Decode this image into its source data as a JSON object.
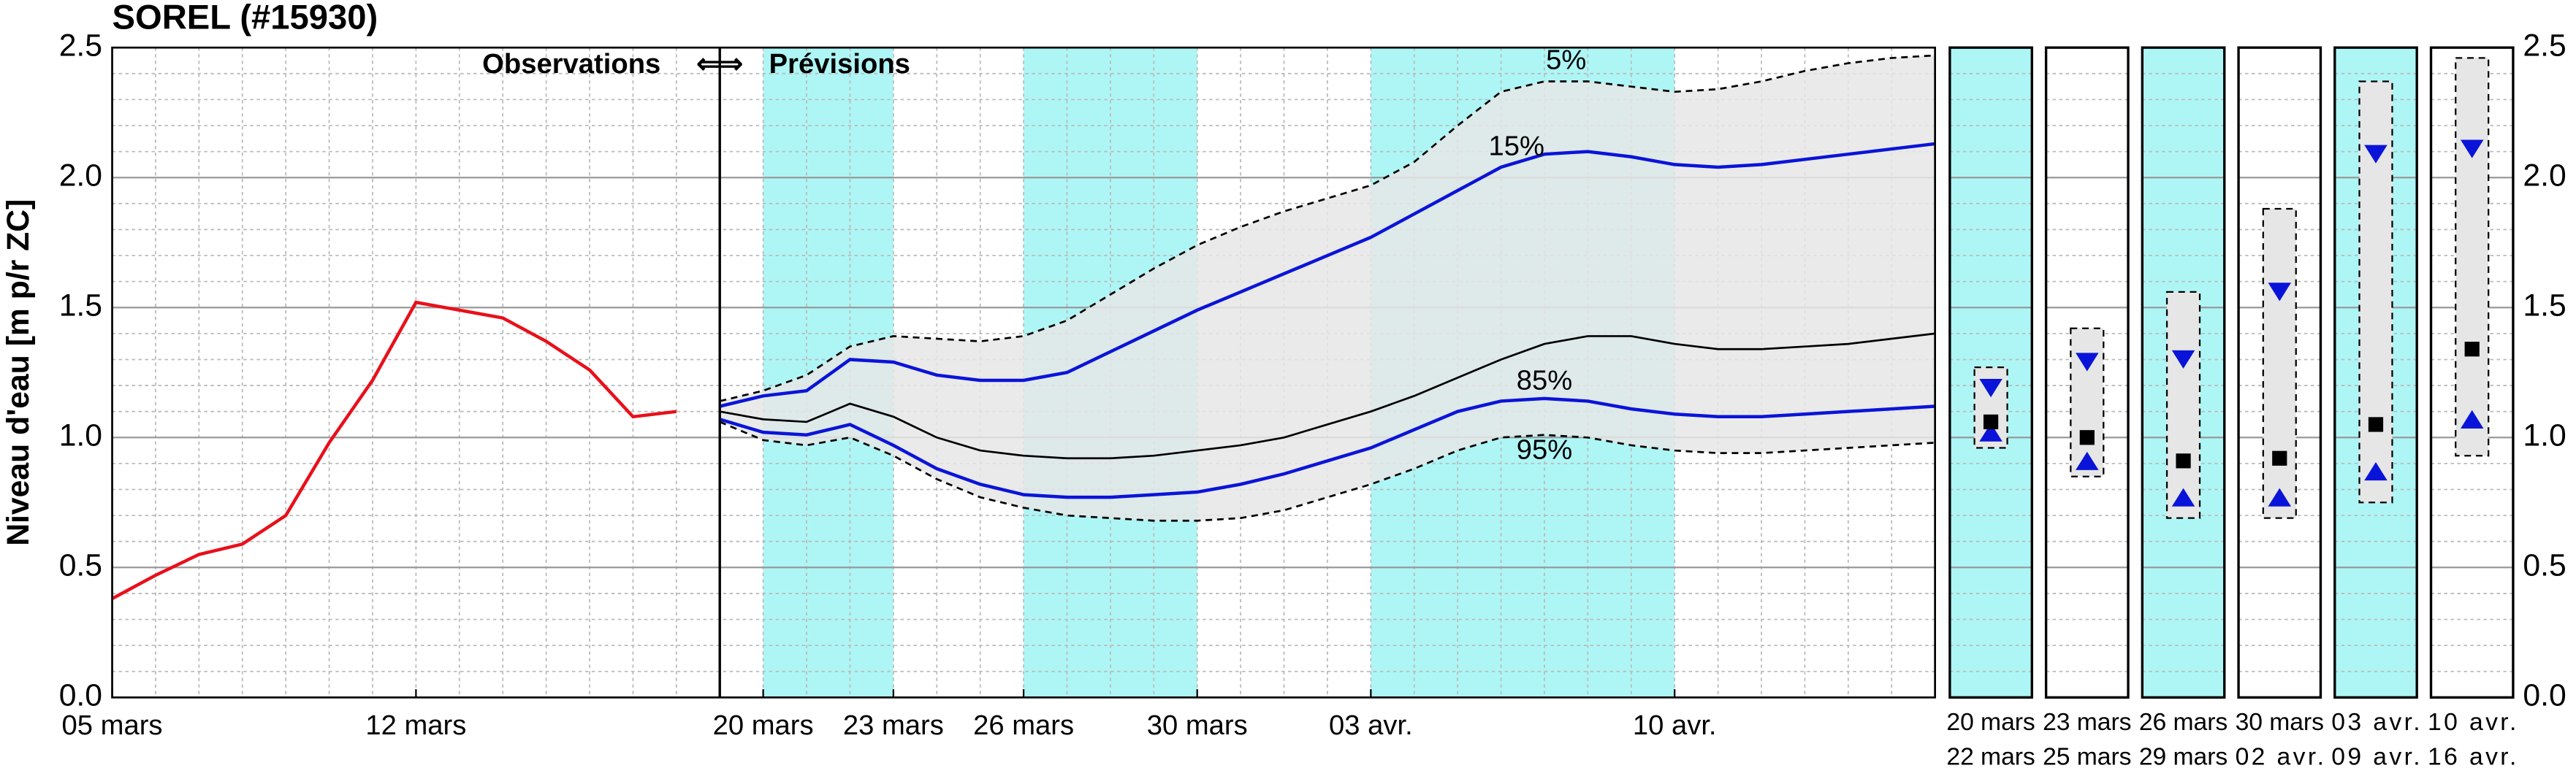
{
  "chart_data": {
    "type": "line",
    "title": "SOREL (#15930)",
    "ylabel": "Niveau d'eau [m p/r ZC]",
    "annotations": [
      "Observations",
      "⇐⇒",
      "Prévisions"
    ],
    "x": [
      0,
      1,
      2,
      3,
      4,
      5,
      6,
      7,
      8,
      9,
      10,
      11,
      12,
      13,
      14,
      15,
      16,
      17,
      18,
      19,
      20,
      21,
      22,
      23,
      24,
      25,
      26,
      27,
      28,
      29,
      30,
      31,
      32,
      33,
      34,
      35,
      36,
      37,
      38,
      39,
      40,
      41,
      42
    ],
    "xlim": [
      0,
      42
    ],
    "xticks": [
      {
        "value": 0,
        "label": "05 mars"
      },
      {
        "value": 7,
        "label": "12 mars"
      },
      {
        "value": 15,
        "label": "20 mars"
      },
      {
        "value": 18,
        "label": "23 mars"
      },
      {
        "value": 21,
        "label": "26 mars"
      },
      {
        "value": 25,
        "label": "30 mars"
      },
      {
        "value": 29,
        "label": "03 avr."
      },
      {
        "value": 36,
        "label": "10 avr."
      }
    ],
    "ylim": [
      0,
      2.5
    ],
    "yticks": [
      {
        "value": 0,
        "label": "0.0"
      },
      0.5,
      {
        "value": 1,
        "label": "1.0"
      },
      1.5,
      {
        "value": 2,
        "label": "2.0"
      },
      2.5
    ],
    "y2lim": [
      0,
      2.5
    ],
    "y2ticks": [
      {
        "value": 0,
        "label": "0.0"
      },
      0.5,
      {
        "value": 1,
        "label": "1.0"
      },
      1.5,
      {
        "value": 2,
        "label": "2.0"
      },
      2.5
    ],
    "grid": true,
    "forecast_start": 14,
    "highlights": [
      [
        15,
        18
      ],
      [
        21,
        25
      ],
      [
        29,
        36
      ]
    ],
    "highlight_color": "#aef6f6",
    "band_color": "#e6e6e6",
    "series": [
      {
        "color": "#e8101a",
        "values": [
          0.38,
          0.47,
          0.55,
          0.59,
          0.7,
          0.98,
          1.22,
          1.52,
          1.49,
          1.46,
          1.37,
          1.26,
          1.08,
          1.1,
          null,
          null,
          null,
          null,
          null,
          null,
          null,
          null,
          null,
          null,
          null,
          null,
          null,
          null,
          null,
          null,
          null,
          null,
          null,
          null,
          null,
          null,
          null,
          null,
          null,
          null,
          null,
          null,
          null
        ]
      },
      {
        "name": "5%",
        "color": "#000000",
        "style": "dashed",
        "values": [
          null,
          null,
          null,
          null,
          null,
          null,
          null,
          null,
          null,
          null,
          null,
          null,
          null,
          null,
          1.14,
          1.18,
          1.24,
          1.35,
          1.39,
          1.38,
          1.37,
          1.39,
          1.45,
          1.55,
          1.65,
          1.74,
          1.81,
          1.87,
          1.92,
          1.97,
          2.06,
          2.2,
          2.33,
          2.37,
          2.37,
          2.35,
          2.33,
          2.34,
          2.37,
          2.41,
          2.44,
          2.46,
          2.47
        ]
      },
      {
        "name": "15%",
        "color": "#0a14d8",
        "values": [
          null,
          null,
          null,
          null,
          null,
          null,
          null,
          null,
          null,
          null,
          null,
          null,
          null,
          null,
          1.12,
          1.16,
          1.18,
          1.3,
          1.29,
          1.24,
          1.22,
          1.22,
          1.25,
          1.33,
          1.41,
          1.49,
          1.56,
          1.63,
          1.7,
          1.77,
          1.86,
          1.95,
          2.04,
          2.09,
          2.1,
          2.08,
          2.05,
          2.04,
          2.05,
          2.07,
          2.09,
          2.11,
          2.13
        ]
      },
      {
        "color": "#000000",
        "values": [
          null,
          null,
          null,
          null,
          null,
          null,
          null,
          null,
          null,
          null,
          null,
          null,
          null,
          null,
          1.1,
          1.07,
          1.06,
          1.13,
          1.08,
          1.0,
          0.95,
          0.93,
          0.92,
          0.92,
          0.93,
          0.95,
          0.97,
          1.0,
          1.05,
          1.1,
          1.16,
          1.23,
          1.3,
          1.36,
          1.39,
          1.39,
          1.36,
          1.34,
          1.34,
          1.35,
          1.36,
          1.38,
          1.4
        ]
      },
      {
        "name": "85%",
        "color": "#0a14d8",
        "values": [
          null,
          null,
          null,
          null,
          null,
          null,
          null,
          null,
          null,
          null,
          null,
          null,
          null,
          null,
          1.07,
          1.02,
          1.01,
          1.05,
          0.97,
          0.88,
          0.82,
          0.78,
          0.77,
          0.77,
          0.78,
          0.79,
          0.82,
          0.86,
          0.91,
          0.96,
          1.03,
          1.1,
          1.14,
          1.15,
          1.14,
          1.11,
          1.09,
          1.08,
          1.08,
          1.09,
          1.1,
          1.11,
          1.12
        ]
      },
      {
        "name": "95%",
        "color": "#000000",
        "style": "dashed",
        "values": [
          null,
          null,
          null,
          null,
          null,
          null,
          null,
          null,
          null,
          null,
          null,
          null,
          null,
          null,
          1.06,
          0.99,
          0.97,
          1.0,
          0.93,
          0.84,
          0.77,
          0.73,
          0.7,
          0.69,
          0.68,
          0.68,
          0.69,
          0.72,
          0.77,
          0.82,
          0.88,
          0.95,
          1.0,
          1.01,
          1.0,
          0.97,
          0.95,
          0.94,
          0.94,
          0.95,
          0.96,
          0.97,
          0.98
        ]
      }
    ],
    "panels": [
      {
        "labels": [
          "20 mars",
          "22 mars"
        ],
        "highlight": true,
        "axis": "y2",
        "low": 0.96,
        "high": 1.27,
        "p15": 1.19,
        "p85": 1.02,
        "median": 1.06
      },
      {
        "labels": [
          "23 mars",
          "25 mars"
        ],
        "highlight": false,
        "axis": "y2",
        "low": 0.85,
        "high": 1.42,
        "p15": 1.29,
        "p85": 0.91,
        "median": 1.0
      },
      {
        "labels": [
          "26 mars",
          "29 mars"
        ],
        "highlight": true,
        "axis": "y2",
        "low": 0.69,
        "high": 1.56,
        "p15": 1.3,
        "p85": 0.77,
        "median": 0.91
      },
      {
        "labels": [
          "30 mars",
          "02 avr."
        ],
        "highlight": false,
        "axis": "y2",
        "low": 0.69,
        "high": 1.88,
        "p15": 1.56,
        "p85": 0.77,
        "median": 0.92
      },
      {
        "labels": [
          "03 avr.",
          "09 avr."
        ],
        "highlight": true,
        "axis": "y2",
        "low": 0.75,
        "high": 2.37,
        "p15": 2.09,
        "p85": 0.87,
        "median": 1.05
      },
      {
        "labels": [
          "10 avr.",
          "16 avr."
        ],
        "highlight": false,
        "axis": "y2",
        "low": 0.93,
        "high": 2.46,
        "p15": 2.11,
        "p85": 1.07,
        "median": 1.34
      }
    ]
  }
}
